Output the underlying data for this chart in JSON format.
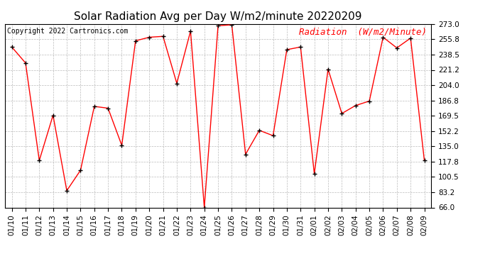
{
  "title": "Solar Radiation Avg per Day W/m2/minute 20220209",
  "copyright": "Copyright 2022 Cartronics.com",
  "legend_label": "Radiation  (W/m2/Minute)",
  "dates": [
    "01/10",
    "01/11",
    "01/12",
    "01/13",
    "01/14",
    "01/15",
    "01/16",
    "01/17",
    "01/18",
    "01/19",
    "01/20",
    "01/21",
    "01/22",
    "01/23",
    "01/24",
    "01/25",
    "01/26",
    "01/27",
    "01/28",
    "01/29",
    "01/30",
    "01/31",
    "02/01",
    "02/02",
    "02/03",
    "02/04",
    "02/05",
    "02/06",
    "02/07",
    "02/08",
    "02/09"
  ],
  "values": [
    247.0,
    229.0,
    119.0,
    170.0,
    85.0,
    108.0,
    180.0,
    178.0,
    136.0,
    254.0,
    258.0,
    259.0,
    206.0,
    265.0,
    66.0,
    271.0,
    272.0,
    126.0,
    153.0,
    147.0,
    244.0,
    247.0,
    104.0,
    222.0,
    172.0,
    181.0,
    186.0,
    258.0,
    246.0,
    257.0,
    119.0
  ],
  "y_ticks": [
    66.0,
    83.2,
    100.5,
    117.8,
    135.0,
    152.2,
    169.5,
    186.8,
    204.0,
    221.2,
    238.5,
    255.8,
    273.0
  ],
  "y_min": 66.0,
  "y_max": 273.0,
  "line_color": "red",
  "marker_color": "black",
  "title_fontsize": 11,
  "copyright_fontsize": 7,
  "legend_fontsize": 9,
  "tick_fontsize": 7.5,
  "background_color": "#ffffff",
  "grid_color": "#bbbbbb"
}
